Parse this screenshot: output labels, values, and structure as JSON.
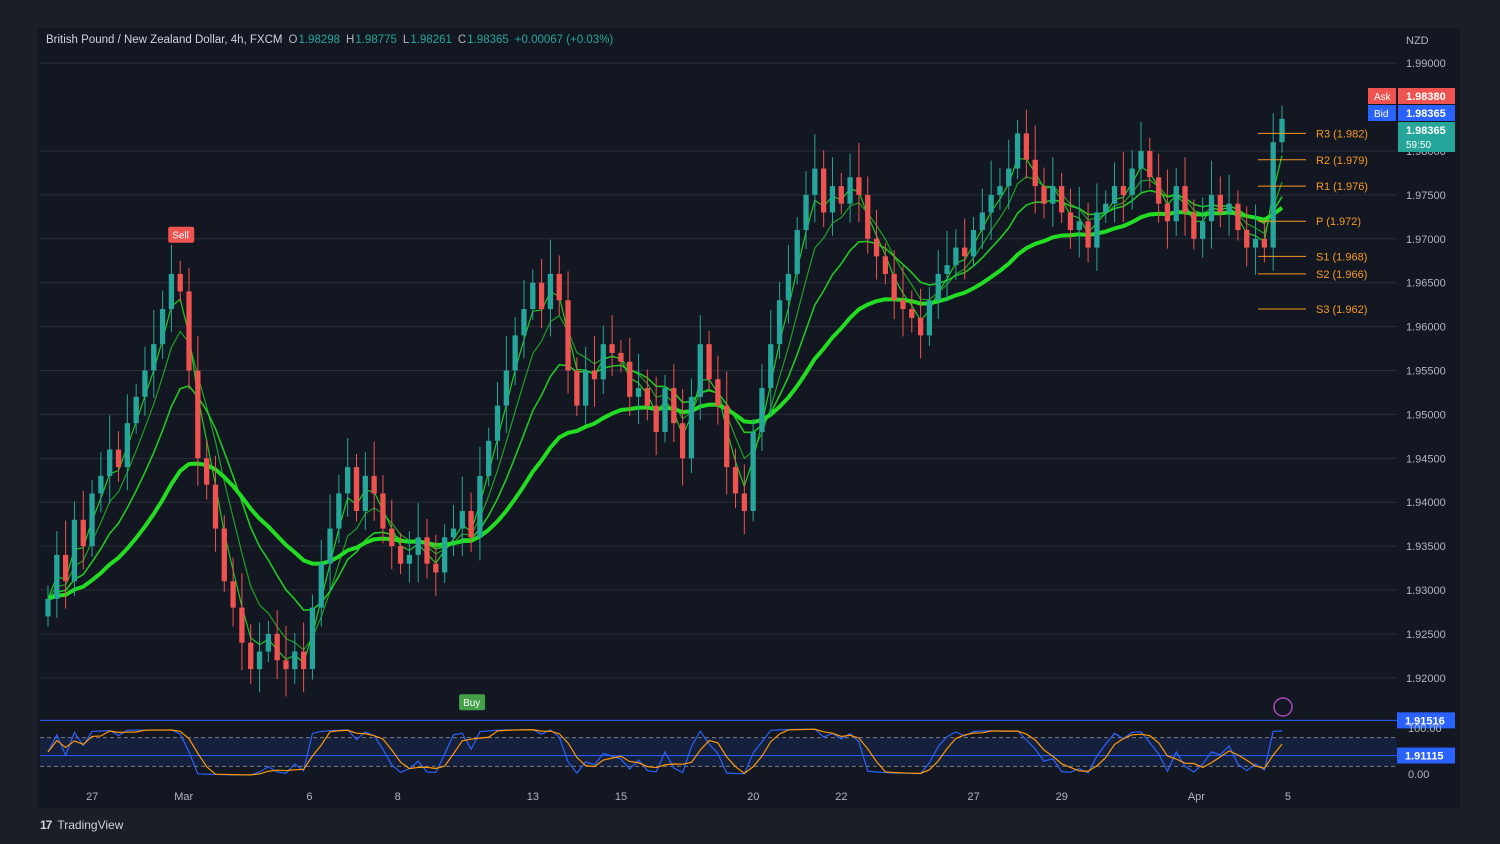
{
  "header": {
    "symbol": "British Pound / New Zealand Dollar, 4h, FXCM",
    "open_label": "O",
    "open": "1.98298",
    "high_label": "H",
    "high": "1.98775",
    "low_label": "L",
    "low": "1.98261",
    "close_label": "C",
    "close": "1.98365",
    "change": "+0.00067 (+0.03%)"
  },
  "currency": "NZD",
  "branding": "TradingView",
  "colors": {
    "bg": "#131722",
    "up": "#26a69a",
    "down": "#ef5350",
    "ema": "#22dd22",
    "grid": "#2a2e39",
    "text": "#b2b5be",
    "pivot": "#f59a23"
  },
  "chart_data": {
    "type": "candlestick",
    "price_axis": {
      "ticks": [
        "1.99000",
        "1.98000",
        "1.97500",
        "1.97000",
        "1.96500",
        "1.96000",
        "1.95500",
        "1.95000",
        "1.94500",
        "1.94000",
        "1.93500",
        "1.93000",
        "1.92500",
        "1.92000"
      ],
      "tick_values": [
        1.99,
        1.98,
        1.975,
        1.97,
        1.965,
        1.96,
        1.955,
        1.95,
        1.945,
        1.94,
        1.935,
        1.93,
        1.925,
        1.92
      ],
      "ylim": [
        1.9152,
        1.9915
      ]
    },
    "time_axis": {
      "labels": [
        "27",
        "Mar",
        "6",
        "8",
        "13",
        "15",
        "20",
        "22",
        "27",
        "29",
        "Apr",
        "5"
      ],
      "label_index": [
        5,
        15,
        30,
        40,
        55,
        65,
        80,
        90,
        105,
        115,
        130,
        141
      ]
    },
    "price_tags": [
      {
        "label": "Ask",
        "value": "1.98380",
        "color": "#ef5350"
      },
      {
        "label": "Bid",
        "value": "1.98365",
        "color": "#2962ff"
      },
      {
        "label": "",
        "value": "1.98365",
        "sub": "59:50",
        "color": "#26a69a"
      }
    ],
    "horizontal_lines": [
      {
        "value": "1.91516",
        "num": 1.91516,
        "color": "#2962ff"
      },
      {
        "value": "1.91115",
        "num": 1.91115,
        "color": "#2962ff"
      }
    ],
    "pivots": [
      {
        "label": "R3 (1.982)",
        "value": 1.982
      },
      {
        "label": "R2 (1.979)",
        "value": 1.979
      },
      {
        "label": "R1 (1.976)",
        "value": 1.976
      },
      {
        "label": "P (1.972)",
        "value": 1.972
      },
      {
        "label": "S1 (1.968)",
        "value": 1.968
      },
      {
        "label": "S2 (1.966)",
        "value": 1.966
      },
      {
        "label": "S3 (1.962)",
        "value": 1.962
      }
    ],
    "signals": [
      {
        "label": "Sell",
        "index": 15,
        "price": 1.9675,
        "color": "#ef5350"
      },
      {
        "label": "Buy",
        "index": 48,
        "price": 1.9195,
        "color": "#43a047"
      }
    ],
    "closes": [
      1.929,
      1.934,
      1.931,
      1.938,
      1.935,
      1.941,
      1.943,
      1.946,
      1.944,
      1.949,
      1.952,
      1.955,
      1.958,
      1.962,
      1.966,
      1.964,
      1.955,
      1.945,
      1.942,
      1.937,
      1.931,
      1.928,
      1.924,
      1.921,
      1.923,
      1.925,
      1.922,
      1.921,
      1.923,
      1.921,
      1.928,
      1.933,
      1.937,
      1.941,
      1.944,
      1.939,
      1.943,
      1.941,
      1.937,
      1.935,
      1.933,
      1.934,
      1.936,
      1.933,
      1.932,
      1.936,
      1.937,
      1.939,
      1.936,
      1.943,
      1.947,
      1.951,
      1.955,
      1.959,
      1.962,
      1.965,
      1.962,
      1.966,
      1.963,
      1.955,
      1.951,
      1.955,
      1.954,
      1.958,
      1.957,
      1.956,
      1.952,
      1.953,
      1.951,
      1.948,
      1.953,
      1.949,
      1.945,
      1.952,
      1.958,
      1.954,
      1.951,
      1.944,
      1.941,
      1.939,
      1.948,
      1.953,
      1.958,
      1.963,
      1.966,
      1.971,
      1.975,
      1.978,
      1.973,
      1.976,
      1.974,
      1.977,
      1.975,
      1.97,
      1.968,
      1.966,
      1.963,
      1.962,
      1.961,
      1.959,
      1.963,
      1.966,
      1.967,
      1.969,
      1.968,
      1.971,
      1.973,
      1.975,
      1.976,
      1.978,
      1.982,
      1.979,
      1.976,
      1.974,
      1.976,
      1.973,
      1.971,
      1.972,
      1.969,
      1.973,
      1.974,
      1.976,
      1.975,
      1.978,
      1.98,
      1.977,
      1.974,
      1.972,
      1.976,
      1.973,
      1.97,
      1.972,
      1.975,
      1.973,
      1.974,
      1.971,
      1.969,
      1.97,
      1.969,
      1.981,
      1.98365
    ],
    "stochastic": {
      "ticks": [
        "100.00",
        "0.00"
      ],
      "levels": [
        80,
        20
      ]
    }
  }
}
